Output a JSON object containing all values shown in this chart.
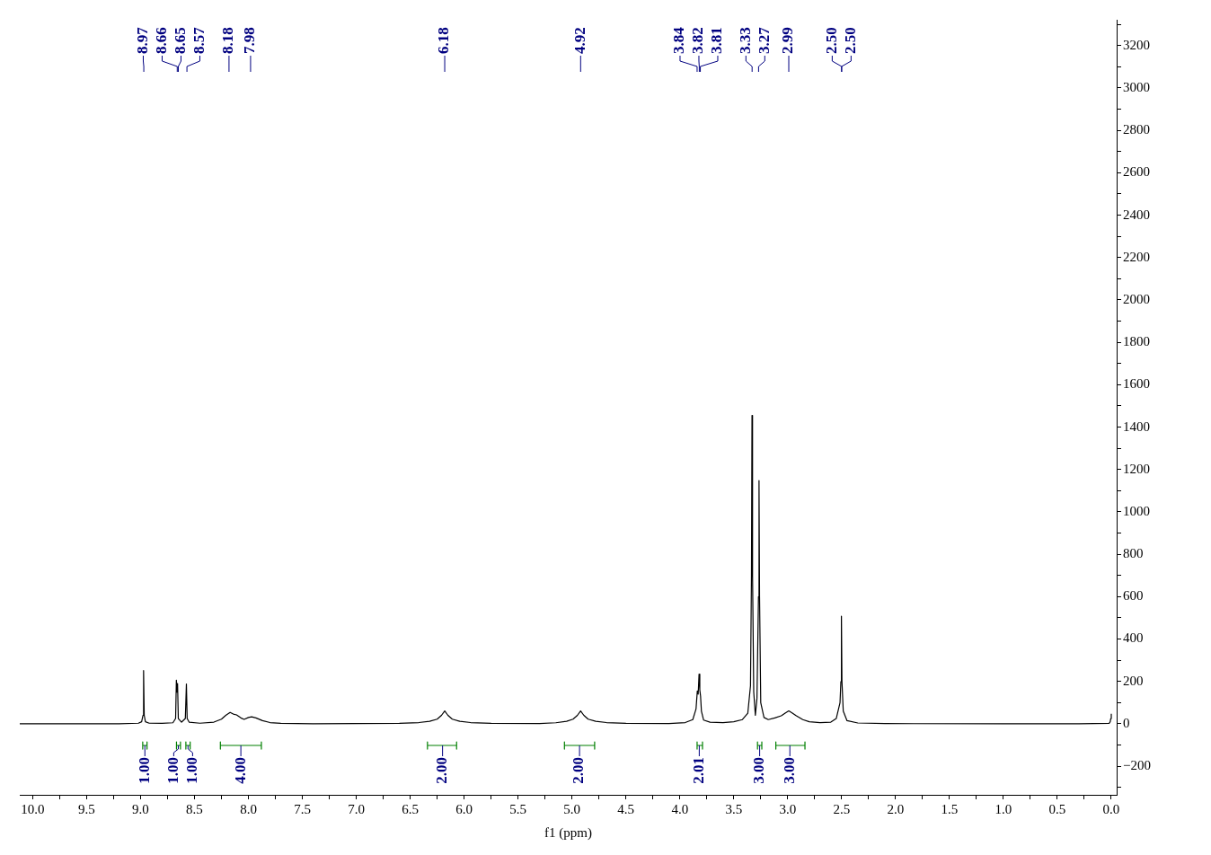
{
  "chart_data": {
    "type": "line",
    "xlabel": "f1 (ppm)",
    "marker": "none",
    "xlim": [
      10.12,
      -0.05
    ],
    "xticks": [
      {
        "value": 10,
        "label": "10.0"
      },
      {
        "value": 9.75,
        "label": null
      },
      9.5,
      {
        "value": 9.25,
        "label": null
      },
      {
        "value": 9,
        "label": "9.0"
      },
      {
        "value": 8.75,
        "label": null
      },
      8.5,
      {
        "value": 8.25,
        "label": null
      },
      {
        "value": 8,
        "label": "8.0"
      },
      {
        "value": 7.75,
        "label": null
      },
      7.5,
      {
        "value": 7.25,
        "label": null
      },
      {
        "value": 7,
        "label": "7.0"
      },
      {
        "value": 6.75,
        "label": null
      },
      6.5,
      {
        "value": 6.25,
        "label": null
      },
      {
        "value": 6,
        "label": "6.0"
      },
      {
        "value": 5.75,
        "label": null
      },
      5.5,
      {
        "value": 5.25,
        "label": null
      },
      {
        "value": 5,
        "label": "5.0"
      },
      {
        "value": 4.75,
        "label": null
      },
      4.5,
      {
        "value": 4.25,
        "label": null
      },
      {
        "value": 4,
        "label": "4.0"
      },
      {
        "value": 3.75,
        "label": null
      },
      3.5,
      {
        "value": 3.25,
        "label": null
      },
      {
        "value": 3,
        "label": "3.0"
      },
      {
        "value": 2.75,
        "label": null
      },
      2.5,
      {
        "value": 2.25,
        "label": null
      },
      {
        "value": 2,
        "label": "2.0"
      },
      {
        "value": 1.75,
        "label": null
      },
      1.5,
      {
        "value": 1.25,
        "label": null
      },
      {
        "value": 1,
        "label": "1.0"
      },
      {
        "value": 0.75,
        "label": null
      },
      0.5,
      {
        "value": 0.25,
        "label": null
      },
      {
        "value": 0,
        "label": "0.0"
      }
    ],
    "ylim": [
      -335,
      3322
    ],
    "yticks": [
      {
        "value": -300,
        "label": null
      },
      {
        "value": -200,
        "label": "−200"
      },
      {
        "value": -100,
        "label": null
      },
      0,
      {
        "value": 100,
        "label": null
      },
      200,
      {
        "value": 300,
        "label": null
      },
      400,
      {
        "value": 500,
        "label": null
      },
      600,
      {
        "value": 700,
        "label": null
      },
      800,
      {
        "value": 900,
        "label": null
      },
      1000,
      {
        "value": 1100,
        "label": null
      },
      1200,
      {
        "value": 1300,
        "label": null
      },
      1400,
      {
        "value": 1500,
        "label": null
      },
      1600,
      {
        "value": 1700,
        "label": null
      },
      1800,
      {
        "value": 1900,
        "label": null
      },
      2000,
      {
        "value": 2100,
        "label": null
      },
      2200,
      {
        "value": 2300,
        "label": null
      },
      2400,
      {
        "value": 2500,
        "label": null
      },
      2600,
      {
        "value": 2700,
        "label": null
      },
      2800,
      {
        "value": 2900,
        "label": null
      },
      3000,
      {
        "value": 3100,
        "label": null
      },
      3200,
      {
        "value": 3300,
        "label": null
      }
    ],
    "series": [
      {
        "color": "#000000",
        "x": [
          10.12,
          9.2,
          9.02,
          8.99,
          8.978,
          8.972,
          8.966,
          8.955,
          8.92,
          8.8,
          8.7,
          8.675,
          8.668,
          8.662,
          8.657,
          8.65,
          8.62,
          8.585,
          8.575,
          8.568,
          8.55,
          8.45,
          8.32,
          8.25,
          8.21,
          8.17,
          8.14,
          8.11,
          8.07,
          8.04,
          8.0,
          7.97,
          7.93,
          7.87,
          7.8,
          7.7,
          7.4,
          6.6,
          6.42,
          6.32,
          6.25,
          6.21,
          6.18,
          6.15,
          6.11,
          6.04,
          5.94,
          5.75,
          5.3,
          5.15,
          5.05,
          4.99,
          4.95,
          4.92,
          4.89,
          4.85,
          4.78,
          4.68,
          4.5,
          4.1,
          3.95,
          3.88,
          3.85,
          3.838,
          3.83,
          3.822,
          3.815,
          3.808,
          3.8,
          3.78,
          3.72,
          3.6,
          3.5,
          3.42,
          3.37,
          3.345,
          3.336,
          3.331,
          3.326,
          3.315,
          3.3,
          3.285,
          3.271,
          3.266,
          3.261,
          3.25,
          3.22,
          3.18,
          3.12,
          3.06,
          3.02,
          2.99,
          2.96,
          2.92,
          2.86,
          2.8,
          2.7,
          2.6,
          2.55,
          2.515,
          2.507,
          2.502,
          2.497,
          2.485,
          2.45,
          2.35,
          2.1,
          1.0,
          0.3,
          0.02,
          0.01,
          0.005,
          0.0
        ],
        "values": [
          0,
          0,
          3,
          10,
          40,
          251,
          40,
          10,
          3,
          2,
          5,
          25,
          206,
          150,
          190,
          25,
          8,
          25,
          188,
          25,
          8,
          3,
          8,
          22,
          40,
          54,
          46,
          42,
          28,
          21,
          30,
          33,
          28,
          15,
          6,
          2,
          0,
          2,
          6,
          12,
          22,
          40,
          61,
          40,
          22,
          12,
          6,
          2,
          1,
          5,
          12,
          22,
          40,
          61,
          40,
          22,
          12,
          6,
          2,
          1,
          6,
          20,
          70,
          155,
          140,
          234,
          160,
          131,
          60,
          18,
          8,
          6,
          10,
          20,
          50,
          180,
          700,
          1455,
          700,
          150,
          40,
          120,
          600,
          1148,
          600,
          100,
          30,
          20,
          28,
          38,
          52,
          61,
          52,
          38,
          20,
          10,
          6,
          8,
          25,
          100,
          200,
          508,
          200,
          60,
          15,
          4,
          1,
          0,
          0,
          2,
          10,
          25,
          47
        ]
      },
      {
        "color": "#008000",
        "x": [
          8.98,
          8.98,
          8.98,
          8.94,
          8.94,
          8.94
        ],
        "values": [
          -85,
          -119,
          -102,
          -102,
          -85,
          -119
        ]
      },
      {
        "color": "#008000",
        "x": [
          8.667,
          8.667,
          8.667,
          8.63,
          8.63,
          8.63
        ],
        "values": [
          -85,
          -119,
          -102,
          -102,
          -85,
          -119
        ]
      },
      {
        "color": "#008000",
        "x": [
          8.58,
          8.58,
          8.58,
          8.54,
          8.54,
          8.54
        ],
        "values": [
          -85,
          -119,
          -102,
          -102,
          -85,
          -119
        ]
      },
      {
        "color": "#008000",
        "x": [
          8.26,
          8.26,
          8.26,
          7.88,
          7.88,
          7.88
        ],
        "values": [
          -85,
          -119,
          -102,
          -102,
          -85,
          -119
        ]
      },
      {
        "color": "#008000",
        "x": [
          6.34,
          6.34,
          6.34,
          6.07,
          6.07,
          6.07
        ],
        "values": [
          -85,
          -119,
          -102,
          -102,
          -85,
          -119
        ]
      },
      {
        "color": "#008000",
        "x": [
          5.07,
          5.07,
          5.07,
          4.79,
          4.79,
          4.79
        ],
        "values": [
          -85,
          -119,
          -102,
          -102,
          -85,
          -119
        ]
      },
      {
        "color": "#008000",
        "x": [
          3.84,
          3.84,
          3.84,
          3.79,
          3.79,
          3.79
        ],
        "values": [
          -85,
          -119,
          -102,
          -102,
          -85,
          -119
        ]
      },
      {
        "color": "#008000",
        "x": [
          3.28,
          3.28,
          3.28,
          3.24,
          3.24,
          3.24
        ],
        "values": [
          -85,
          -119,
          -102,
          -102,
          -85,
          -119
        ]
      },
      {
        "color": "#008000",
        "x": [
          3.11,
          3.11,
          3.11,
          2.84,
          2.84,
          2.84
        ],
        "values": [
          -85,
          -119,
          -102,
          -102,
          -85,
          -119
        ]
      }
    ],
    "annotations": [
      {
        "text": "8.97",
        "x": 8.97
      },
      {
        "text": "8.66",
        "x": 8.66
      },
      {
        "text": "8.65",
        "x": 8.65
      },
      {
        "text": "8.57",
        "x": 8.57
      },
      {
        "text": "8.18",
        "x": 8.18
      },
      {
        "text": "7.98",
        "x": 7.98
      },
      {
        "text": "6.18",
        "x": 6.18
      },
      {
        "text": "4.92",
        "x": 4.92
      },
      {
        "text": "3.84",
        "x": 3.84
      },
      {
        "text": "3.82",
        "x": 3.82
      },
      {
        "text": "3.81",
        "x": 3.81
      },
      {
        "text": "3.33",
        "x": 3.33
      },
      {
        "text": "3.27",
        "x": 3.27
      },
      {
        "text": "2.99",
        "x": 2.99
      },
      {
        "text": "2.50",
        "x": 2.5
      },
      {
        "text": "2.50",
        "x": 2.5
      },
      {
        "text": "1.00",
        "x": 8.96,
        "y": -102
      },
      {
        "text": "1.00",
        "x": 8.65,
        "y": -102
      },
      {
        "text": "1.00",
        "x": 8.56,
        "y": -102
      },
      {
        "text": "4.00",
        "x": 8.07,
        "y": -102
      },
      {
        "text": "2.00",
        "x": 6.2,
        "y": -102
      },
      {
        "text": "2.00",
        "x": 4.93,
        "y": -102
      },
      {
        "text": "2.01",
        "x": 3.82,
        "y": -102
      },
      {
        "text": "3.00",
        "x": 3.26,
        "y": -102
      },
      {
        "text": "3.00",
        "x": 2.98,
        "y": -102
      }
    ]
  }
}
